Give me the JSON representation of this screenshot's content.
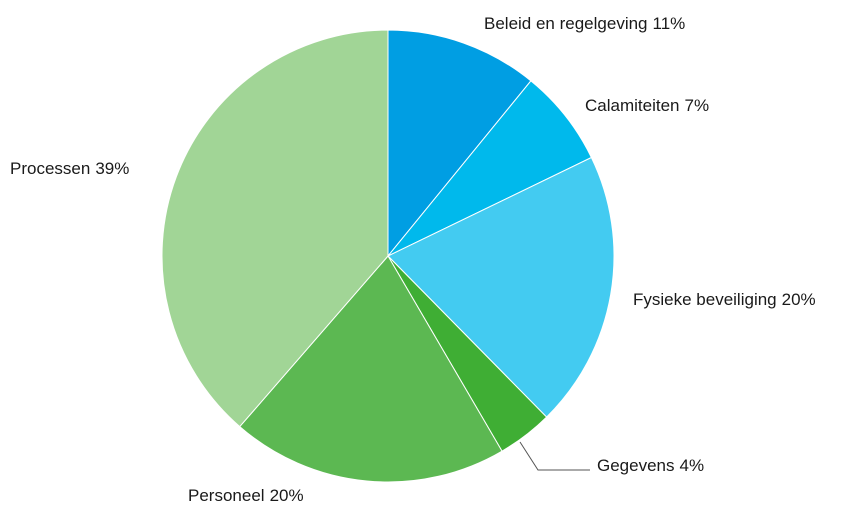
{
  "chart_data": {
    "type": "pie",
    "categories": [
      "Beleid en regelgeving",
      "Calamiteiten",
      "Fysieke beveiliging",
      "Gegevens",
      "Personeel",
      "Processen"
    ],
    "values": [
      11,
      7,
      20,
      4,
      20,
      39
    ],
    "value_labels": [
      "11%",
      "7%",
      "20%",
      "4%",
      "20%",
      "39%"
    ],
    "colors": [
      "#009ee3",
      "#00b9ec",
      "#43cbf1",
      "#3fae34",
      "#5cb852",
      "#a1d596"
    ]
  }
}
